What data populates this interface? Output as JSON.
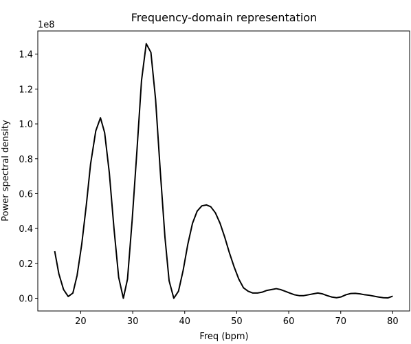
{
  "chart_data": {
    "type": "line",
    "title": "Frequency-domain representation",
    "x_label": "Freq (bpm)",
    "y_label": "Power spectral density",
    "y_offset_label": "1e8",
    "x": [
      15.0,
      15.8,
      16.7,
      17.6,
      18.5,
      19.3,
      20.2,
      21.1,
      21.9,
      22.9,
      23.8,
      24.6,
      25.5,
      26.4,
      27.3,
      28.2,
      29.0,
      29.9,
      30.8,
      31.7,
      32.6,
      33.5,
      34.4,
      35.3,
      36.2,
      37.0,
      37.9,
      38.8,
      39.7,
      40.6,
      41.5,
      42.4,
      43.3,
      44.2,
      45.0,
      45.9,
      46.8,
      47.7,
      48.6,
      49.5,
      50.4,
      51.3,
      52.2,
      53.1,
      54.0,
      54.9,
      55.8,
      56.7,
      57.6,
      58.4,
      59.3,
      60.2,
      61.1,
      62.0,
      62.9,
      63.8,
      64.7,
      65.6,
      66.5,
      67.4,
      68.3,
      69.2,
      70.1,
      71.0,
      71.9,
      72.8,
      73.7,
      74.6,
      75.5,
      76.4,
      77.3,
      78.2,
      79.1,
      80.0
    ],
    "series": [
      {
        "color": "#000000",
        "values": [
          0.27,
          0.14,
          0.05,
          0.01,
          0.03,
          0.13,
          0.31,
          0.54,
          0.77,
          0.96,
          1.035,
          0.95,
          0.72,
          0.4,
          0.12,
          0.0,
          0.11,
          0.45,
          0.84,
          1.25,
          1.46,
          1.41,
          1.14,
          0.73,
          0.35,
          0.1,
          0.0,
          0.04,
          0.16,
          0.31,
          0.43,
          0.5,
          0.53,
          0.535,
          0.525,
          0.49,
          0.43,
          0.35,
          0.26,
          0.18,
          0.11,
          0.06,
          0.04,
          0.03,
          0.03,
          0.035,
          0.045,
          0.05,
          0.055,
          0.05,
          0.04,
          0.03,
          0.02,
          0.015,
          0.015,
          0.02,
          0.025,
          0.03,
          0.025,
          0.015,
          0.007,
          0.003,
          0.008,
          0.02,
          0.027,
          0.028,
          0.025,
          0.02,
          0.017,
          0.012,
          0.007,
          0.003,
          0.002,
          0.012
        ]
      }
    ],
    "xlim": [
      11.75,
      83.25
    ],
    "xticks": [
      20,
      30,
      40,
      50,
      60,
      70,
      80
    ],
    "ylim": [
      -0.073,
      1.533
    ],
    "yticks": [
      {
        "value": 0,
        "label": "0.0"
      },
      0.2,
      0.4,
      0.6,
      0.8,
      {
        "value": 1,
        "label": "1.0"
      },
      1.2,
      1.4
    ],
    "grid": false
  }
}
